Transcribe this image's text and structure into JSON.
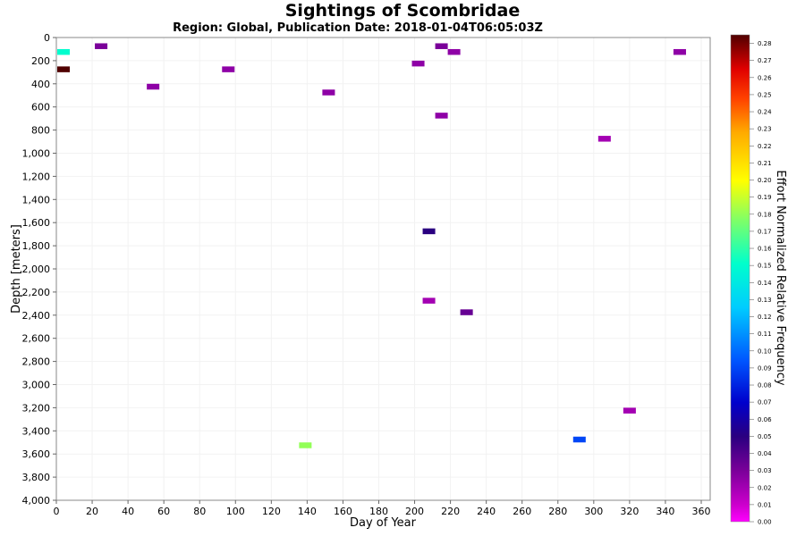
{
  "chart_data": {
    "type": "heatmap",
    "title": "Sightings of Scombridae",
    "subtitle": "Region: Global, Publication Date: 2018-01-04T06:05:03Z",
    "xlabel": "Day of Year",
    "ylabel": "Depth [meters]",
    "colorbar_label": "Effort Normalized Relative Frequency",
    "xlim": [
      0,
      365
    ],
    "ylim": [
      4000,
      0
    ],
    "x_ticks": [
      0,
      20,
      40,
      60,
      80,
      100,
      120,
      140,
      160,
      180,
      200,
      220,
      240,
      260,
      280,
      300,
      320,
      340,
      360
    ],
    "y_ticks": [
      0,
      200,
      400,
      600,
      800,
      1000,
      1200,
      1400,
      1600,
      1800,
      2000,
      2200,
      2400,
      2600,
      2800,
      3000,
      3200,
      3400,
      3600,
      3800,
      4000
    ],
    "y_tick_labels": [
      "0",
      "200",
      "400",
      "600",
      "800",
      "1,000",
      "1,200",
      "1,400",
      "1,600",
      "1,800",
      "2,000",
      "2,200",
      "2,400",
      "2,600",
      "2,800",
      "3,000",
      "3,200",
      "3,400",
      "3,600",
      "3,800",
      "4,000"
    ],
    "colorbar_range": [
      0,
      0.285
    ],
    "colorbar_ticks": [
      "0.00",
      "0.01",
      "0.02",
      "0.03",
      "0.04",
      "0.05",
      "0.06",
      "0.07",
      "0.08",
      "0.09",
      "0.10",
      "0.11",
      "0.12",
      "0.13",
      "0.14",
      "0.15",
      "0.16",
      "0.17",
      "0.18",
      "0.19",
      "0.20",
      "0.21",
      "0.22",
      "0.23",
      "0.24",
      "0.25",
      "0.26",
      "0.27",
      "0.28"
    ],
    "cell_size": {
      "days": 7,
      "depth": 50
    },
    "points": [
      {
        "day": 4,
        "depth": 125,
        "value": 0.15
      },
      {
        "day": 4,
        "depth": 275,
        "value": 0.285
      },
      {
        "day": 25,
        "depth": 75,
        "value": 0.03
      },
      {
        "day": 54,
        "depth": 425,
        "value": 0.025
      },
      {
        "day": 96,
        "depth": 275,
        "value": 0.025
      },
      {
        "day": 152,
        "depth": 475,
        "value": 0.025
      },
      {
        "day": 202,
        "depth": 225,
        "value": 0.025
      },
      {
        "day": 215,
        "depth": 75,
        "value": 0.03
      },
      {
        "day": 222,
        "depth": 125,
        "value": 0.025
      },
      {
        "day": 215,
        "depth": 675,
        "value": 0.025
      },
      {
        "day": 348,
        "depth": 125,
        "value": 0.025
      },
      {
        "day": 306,
        "depth": 875,
        "value": 0.02
      },
      {
        "day": 208,
        "depth": 1675,
        "value": 0.05
      },
      {
        "day": 208,
        "depth": 2275,
        "value": 0.02
      },
      {
        "day": 229,
        "depth": 2375,
        "value": 0.035
      },
      {
        "day": 320,
        "depth": 3225,
        "value": 0.02
      },
      {
        "day": 292,
        "depth": 3475,
        "value": 0.09
      },
      {
        "day": 139,
        "depth": 3525,
        "value": 0.18
      }
    ]
  }
}
